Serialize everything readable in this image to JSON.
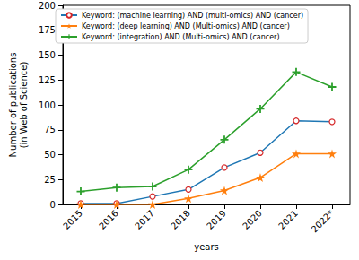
{
  "chart_data": {
    "type": "line",
    "x_label": "years",
    "y_label": "Number of publications\n(in Web of Science)",
    "categories": [
      "2015",
      "2016",
      "2017",
      "2018",
      "2019",
      "2020",
      "2021",
      "2022*"
    ],
    "series": [
      {
        "name": "Keyword: (machine learning) AND (multi-omics) AND (cancer)",
        "color": "#1f77b4",
        "marker": "circle",
        "values": [
          1,
          1,
          8,
          15,
          37,
          52,
          84,
          83
        ]
      },
      {
        "name": "Keyword: (deep learning) AND (Multi-omics) AND (cancer)",
        "color": "#ff7f0e",
        "marker": "star",
        "values": [
          0,
          0,
          0,
          6,
          14,
          27,
          51,
          51
        ]
      },
      {
        "name": "Keyword: (integration) AND (Multi-omics) AND (cancer)",
        "color": "#2ca02c",
        "marker": "plus",
        "values": [
          13,
          17,
          18,
          35,
          65,
          96,
          133,
          118
        ]
      }
    ],
    "ylim": [
      0,
      200
    ],
    "yticks": [
      0,
      25,
      50,
      75,
      100,
      125,
      150,
      175,
      200
    ],
    "grid": false,
    "legend": "upper left"
  }
}
